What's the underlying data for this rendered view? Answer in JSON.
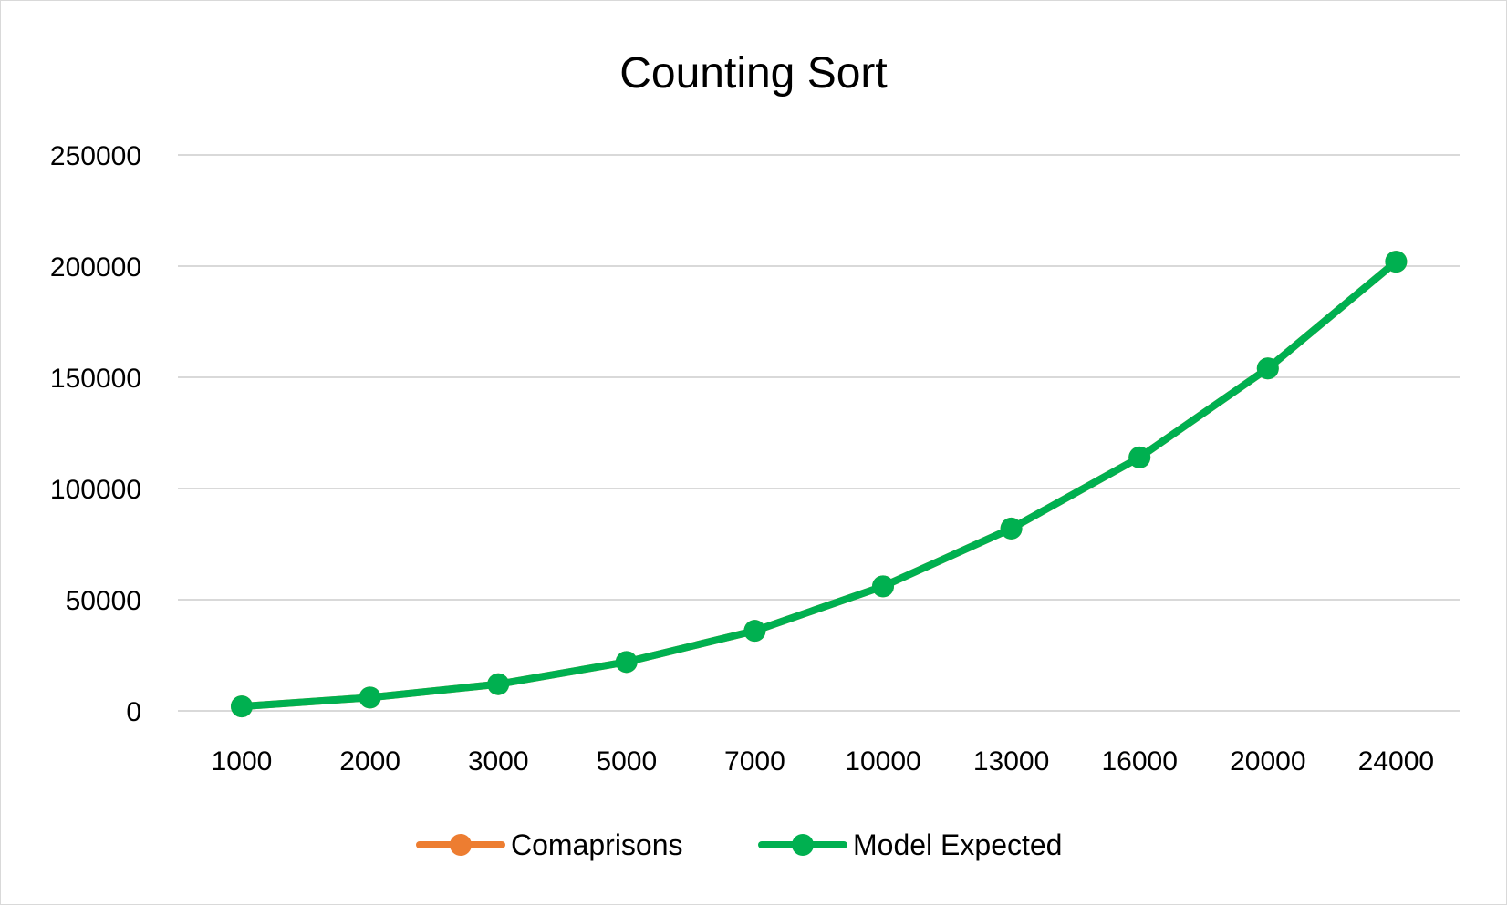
{
  "chart_data": {
    "type": "line",
    "title": "Counting Sort",
    "xlabel": "",
    "ylabel": "",
    "categories": [
      "1000",
      "2000",
      "3000",
      "5000",
      "7000",
      "10000",
      "13000",
      "16000",
      "20000",
      "24000"
    ],
    "ylim": [
      0,
      250000
    ],
    "yticks": [
      "0",
      "50000",
      "100000",
      "150000",
      "200000",
      "250000"
    ],
    "grid": true,
    "legend_position": "bottom",
    "series": [
      {
        "name": "Comaprisons",
        "color": "#ed7d31",
        "values": [
          2000,
          6000,
          12000,
          22000,
          36000,
          56000,
          82000,
          114000,
          154000,
          202000
        ]
      },
      {
        "name": "Model Expected",
        "color": "#00b050",
        "values": [
          2000,
          6000,
          12000,
          22000,
          36000,
          56000,
          82000,
          114000,
          154000,
          202000
        ]
      }
    ]
  }
}
